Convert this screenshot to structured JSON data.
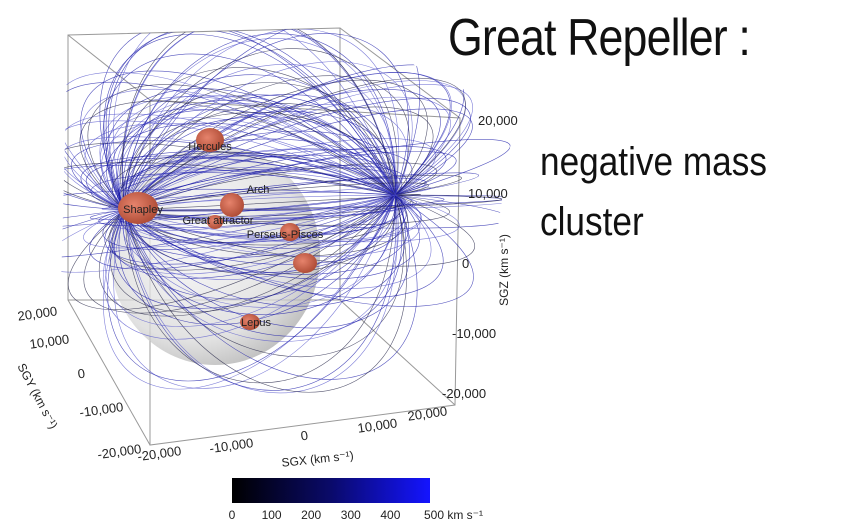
{
  "title": "Great Repeller :",
  "body": [
    "negative mass",
    "cluster"
  ],
  "figure": {
    "structures": [
      "Hercules",
      "Arch",
      "Shapley",
      "Great attractor",
      "Perseus-Pisces",
      "Lepus"
    ],
    "axes": {
      "sgz": {
        "label": "SGZ (km s⁻¹)",
        "ticks": [
          "20,000",
          "10,000",
          "0",
          "-10,000",
          "-20,000"
        ]
      },
      "sgx": {
        "label": "SGX (km s⁻¹)",
        "ticks": [
          "-20,000",
          "-10,000",
          "0",
          "10,000",
          "20,000"
        ]
      },
      "sgy": {
        "label": "SGY (km s⁻¹)",
        "ticks": [
          "20,000",
          "10,000",
          "0",
          "-10,000",
          "-20,000"
        ]
      }
    },
    "colorbar": {
      "ticks": [
        "0",
        "100",
        "200",
        "300",
        "400",
        "500 km s⁻¹"
      ]
    }
  }
}
